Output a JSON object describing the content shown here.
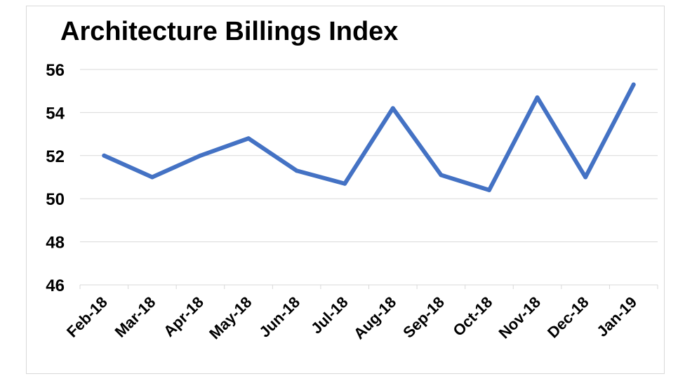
{
  "chart_data": {
    "type": "line",
    "title": "Architecture Billings Index",
    "xlabel": "",
    "ylabel": "",
    "categories": [
      "Feb-18",
      "Mar-18",
      "Apr-18",
      "May-18",
      "Jun-18",
      "Jul-18",
      "Aug-18",
      "Sep-18",
      "Oct-18",
      "Nov-18",
      "Dec-18",
      "Jan-19"
    ],
    "series": [
      {
        "values": [
          52.0,
          51.0,
          52.0,
          52.8,
          51.3,
          50.7,
          54.2,
          51.1,
          50.4,
          54.7,
          51.0,
          55.3
        ]
      }
    ],
    "ylim": [
      46,
      56
    ],
    "yticks": [
      46,
      48,
      50,
      52,
      54,
      56
    ],
    "grid": true,
    "line_color": "#4472c4"
  }
}
